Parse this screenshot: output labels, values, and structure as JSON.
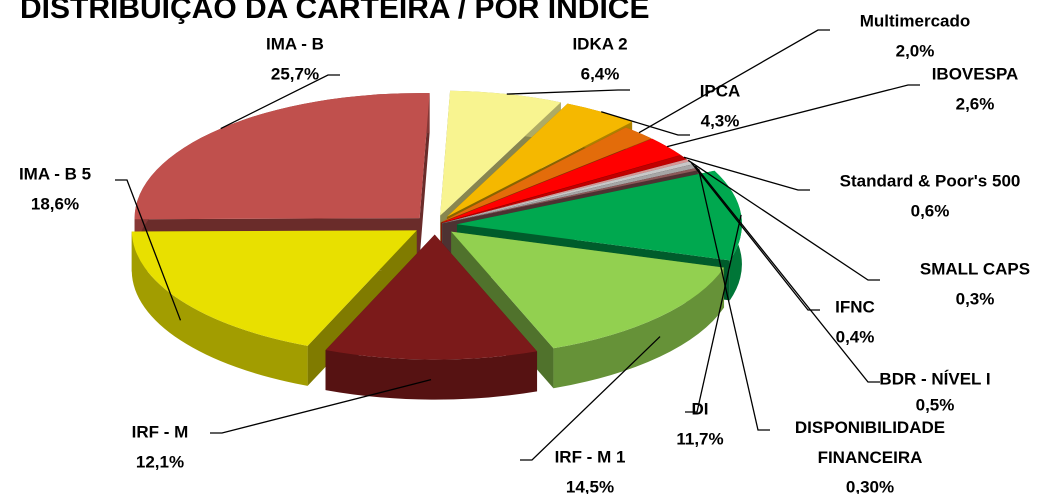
{
  "chart_data": {
    "type": "pie",
    "title": "DISTRIBUIÇÃO DA CARTEIRA / POR ÍNDICE",
    "categories": [
      "IDKA 2",
      "IPCA",
      "Multimercado",
      "IBOVESPA",
      "Standard & Poor's 500",
      "SMALL CAPS",
      "IFNC",
      "BDR - NÍVEL I",
      "DISPONIBILIDADE FINANCEIRA",
      "DI",
      "IRF - M 1",
      "IRF - M",
      "IMA - B 5",
      "IMA - B"
    ],
    "values": [
      6.4,
      4.3,
      2.0,
      2.6,
      0.6,
      0.3,
      0.4,
      0.5,
      0.3,
      11.7,
      14.5,
      12.1,
      18.6,
      25.7
    ],
    "value_labels": [
      "6,4%",
      "4,3%",
      "2,0%",
      "2,6%",
      "0,6%",
      "0,3%",
      "0,4%",
      "0,5%",
      "0,30%",
      "11,7%",
      "14,5%",
      "12,1%",
      "18,6%",
      "25,7%"
    ],
    "colors": [
      "#f8f490",
      "#f5b800",
      "#e36c0a",
      "#ff0000",
      "#c00000",
      "#d99694",
      "#c8c8c8",
      "#a6a6a6",
      "#8c5a5a",
      "#00a84f",
      "#92d050",
      "#7b1a1a",
      "#e8e000",
      "#c0504d"
    ]
  }
}
